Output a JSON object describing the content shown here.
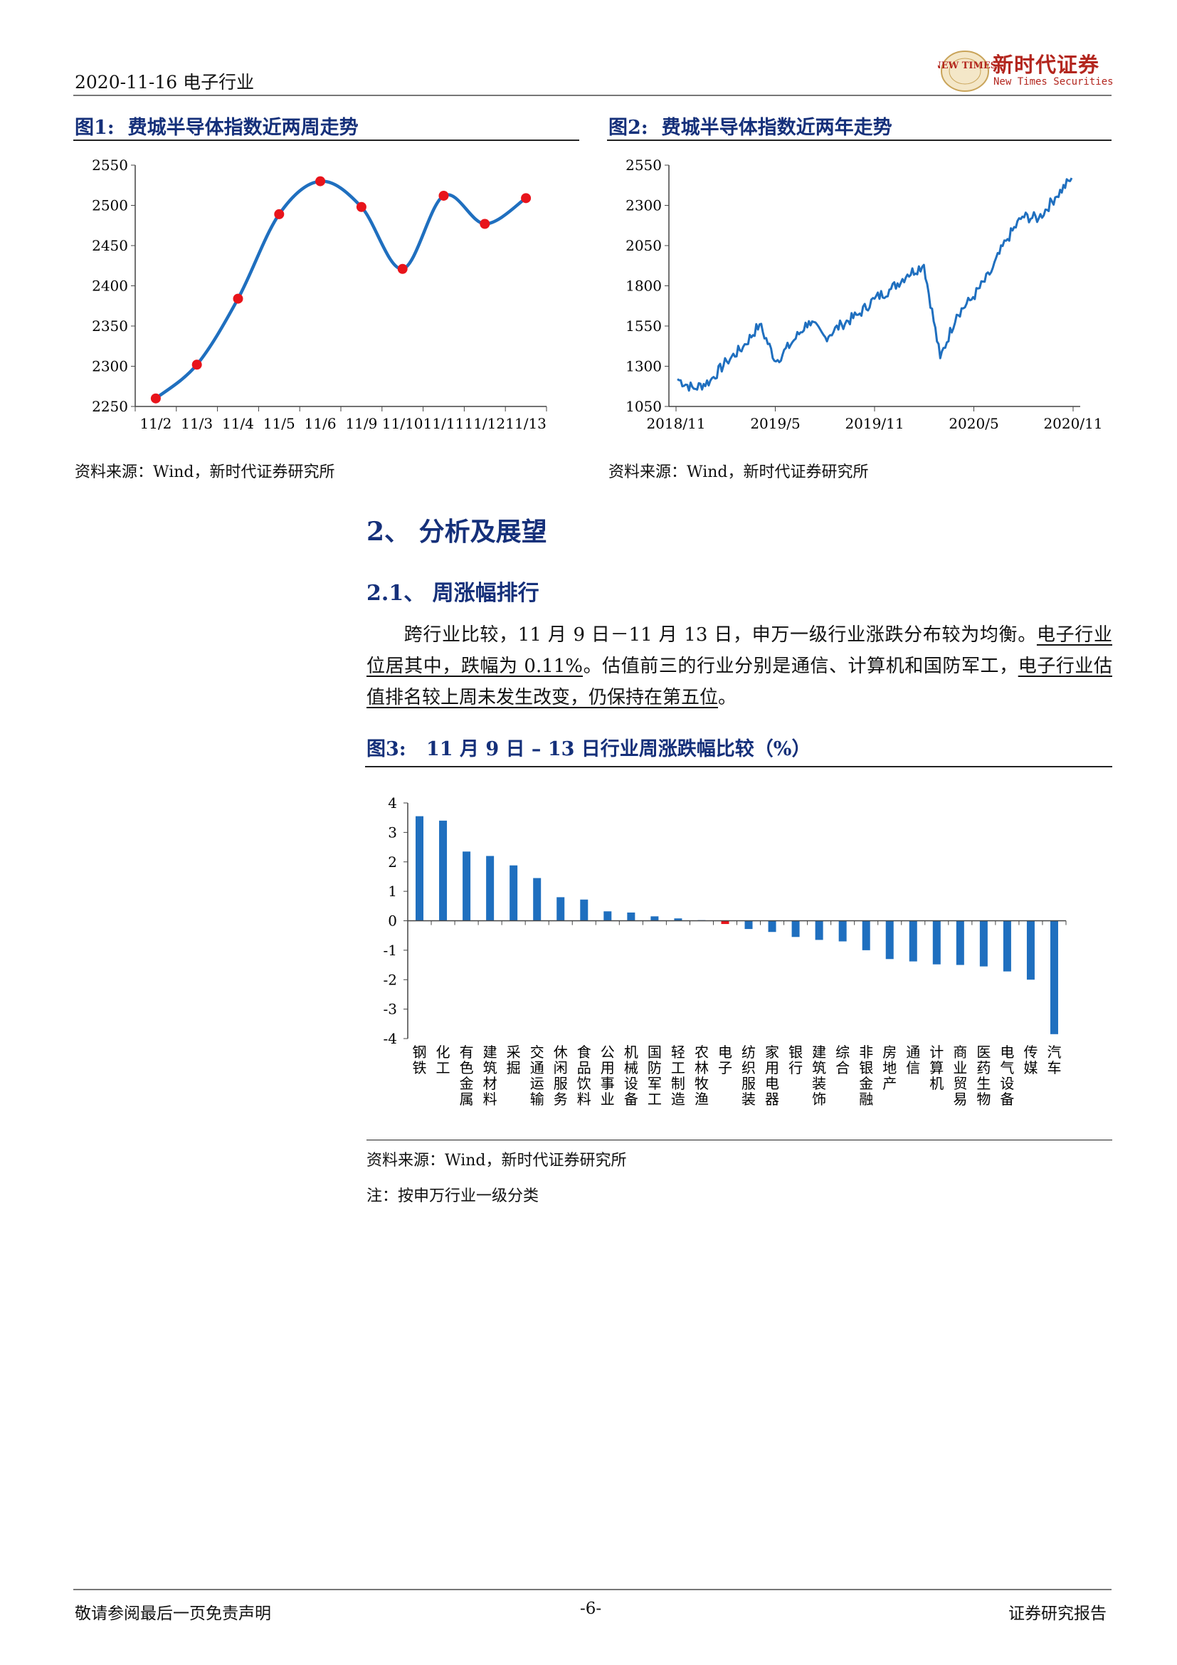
{
  "header": {
    "date_industry": "2020-11-16  电子行业",
    "logo_cn": "新时代证券",
    "logo_en": "New Times Securities",
    "logo_badge": "NEW TIMES"
  },
  "figure1": {
    "label": "图1:",
    "title": "费城半导体指数近两周走势",
    "source": "资料来源：Wind，新时代证券研究所",
    "chart_data": {
      "type": "line",
      "categories": [
        "11/2",
        "11/3",
        "11/4",
        "11/5",
        "11/6",
        "11/9",
        "11/10",
        "11/11",
        "11/12",
        "11/13"
      ],
      "values": [
        2260,
        2302,
        2384,
        2489,
        2530,
        2498,
        2421,
        2512,
        2477,
        2509
      ],
      "ylim": [
        2250,
        2550
      ],
      "yticks": [
        2250,
        2300,
        2350,
        2400,
        2450,
        2500,
        2550
      ],
      "line_color": "#1f6fbf",
      "marker_color": "#e8141b"
    }
  },
  "figure2": {
    "label": "图2:",
    "title": "费城半导体指数近两年走势",
    "source": "资料来源：Wind，新时代证券研究所",
    "chart_data": {
      "type": "line",
      "xticks": [
        "2018/11",
        "2019/5",
        "2019/11",
        "2020/5",
        "2020/11"
      ],
      "x": [
        "2018-11",
        "2018-12",
        "2019-01",
        "2019-02",
        "2019-03",
        "2019-04",
        "2019-05",
        "2019-06",
        "2019-07",
        "2019-08",
        "2019-09",
        "2019-10",
        "2019-11",
        "2019-12",
        "2020-01",
        "2020-02",
        "2020-03",
        "2020-04",
        "2020-05",
        "2020-06",
        "2020-07",
        "2020-08",
        "2020-09",
        "2020-10",
        "2020-11"
      ],
      "values": [
        1220,
        1160,
        1210,
        1330,
        1420,
        1560,
        1330,
        1450,
        1580,
        1480,
        1560,
        1620,
        1720,
        1780,
        1870,
        1930,
        1350,
        1620,
        1730,
        1870,
        2080,
        2230,
        2220,
        2350,
        2470
      ],
      "ylim": [
        1050,
        2550
      ],
      "yticks": [
        1050,
        1300,
        1550,
        1800,
        2050,
        2300,
        2550
      ],
      "line_color": "#1f6fbf"
    }
  },
  "section": {
    "heading": "2、 分析及展望",
    "subheading": "2.1、 周涨幅排行",
    "para_start": "跨行业比较，11 月 9 日－11 月 13 日，申万一级行业涨跌分布较为均衡。",
    "para_u1": "电子行业位居其中，跌幅为 0.11%",
    "para_mid": "。估值前三的行业分别是通信、计算机和国防军工，",
    "para_u2": "电子行业估值排名较上周未发生改变，仍保持在第五位",
    "para_end": "。"
  },
  "figure3": {
    "label": "图3:",
    "title": "11 月 9 日 – 13 日行业周涨跌幅比较（%）",
    "source": "资料来源：Wind，新时代证券研究所",
    "note": "注：按申万行业一级分类",
    "chart_data": {
      "type": "bar",
      "categories": [
        "钢铁",
        "化工",
        "有色金属",
        "建筑材料",
        "采掘",
        "交通运输",
        "休闲服务",
        "食品饮料",
        "公用事业",
        "机械设备",
        "国防军工",
        "轻工制造",
        "农林牧渔",
        "电子",
        "纺织服装",
        "家用电器",
        "银行",
        "建筑装饰",
        "综合",
        "非银金融",
        "房地产",
        "通信",
        "计算机",
        "商业贸易",
        "医药生物",
        "电气设备",
        "传媒",
        "汽车"
      ],
      "values": [
        3.55,
        3.4,
        2.35,
        2.2,
        1.88,
        1.45,
        0.8,
        0.72,
        0.32,
        0.28,
        0.15,
        0.08,
        0.02,
        -0.11,
        -0.28,
        -0.38,
        -0.55,
        -0.65,
        -0.7,
        -1.0,
        -1.3,
        -1.38,
        -1.48,
        -1.5,
        -1.55,
        -1.72,
        -2.0,
        -3.85
      ],
      "ylim": [
        -4,
        4
      ],
      "yticks": [
        -4,
        -3,
        -2,
        -1,
        0,
        1,
        2,
        3,
        4
      ],
      "bar_color": "#1f6fbf",
      "highlight": "电子",
      "highlight_color": "#e8141b"
    }
  },
  "footer": {
    "left": "敬请参阅最后一页免责声明",
    "center": "-6-",
    "right": "证券研究报告"
  }
}
